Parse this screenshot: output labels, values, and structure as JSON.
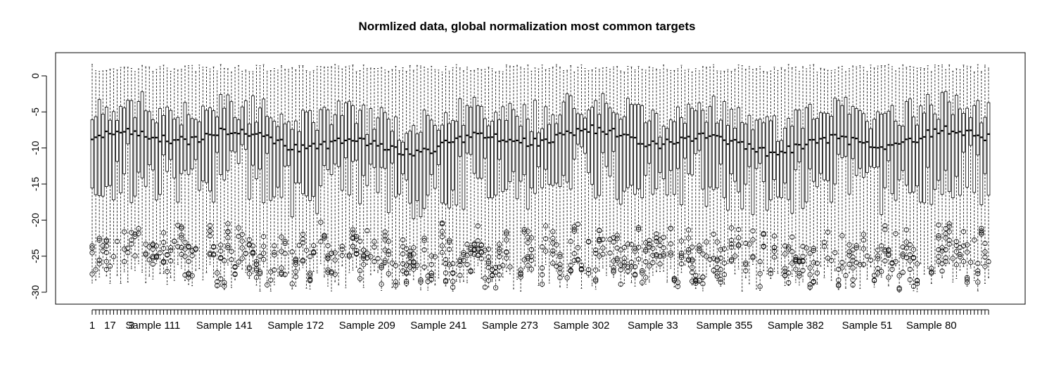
{
  "chart_data": {
    "type": "boxplot",
    "title": "Normlized data, global normalization most common targets",
    "xlabel": "",
    "ylabel": "",
    "ylim": [
      -31,
      3
    ],
    "y_ticks": [
      0,
      -5,
      -10,
      -15,
      -20,
      -25,
      -30
    ],
    "x_tick_labels": [
      "1",
      "17",
      "3",
      "Sample 111",
      "Sample 141",
      "Sample 172",
      "Sample 209",
      "Sample 241",
      "Sample 273",
      "Sample 302",
      "Sample 33",
      "Sample 355",
      "Sample 382",
      "Sample 51",
      "Sample 80"
    ],
    "n_boxes": 252,
    "grid": false,
    "legend": "none",
    "summary": {
      "median_range": [
        -12,
        -6.5
      ],
      "q1_range": [
        -19,
        -10
      ],
      "q3_range": [
        -9,
        -3
      ],
      "whisker_min_range": [
        -30,
        -26
      ],
      "whisker_max_range": [
        0.5,
        1.6
      ],
      "outlier_range": [
        -30.5,
        -16
      ]
    },
    "label_positions": [
      0,
      5,
      11,
      17,
      37,
      57,
      77,
      97,
      117,
      137,
      157,
      177,
      197,
      217,
      235
    ]
  }
}
